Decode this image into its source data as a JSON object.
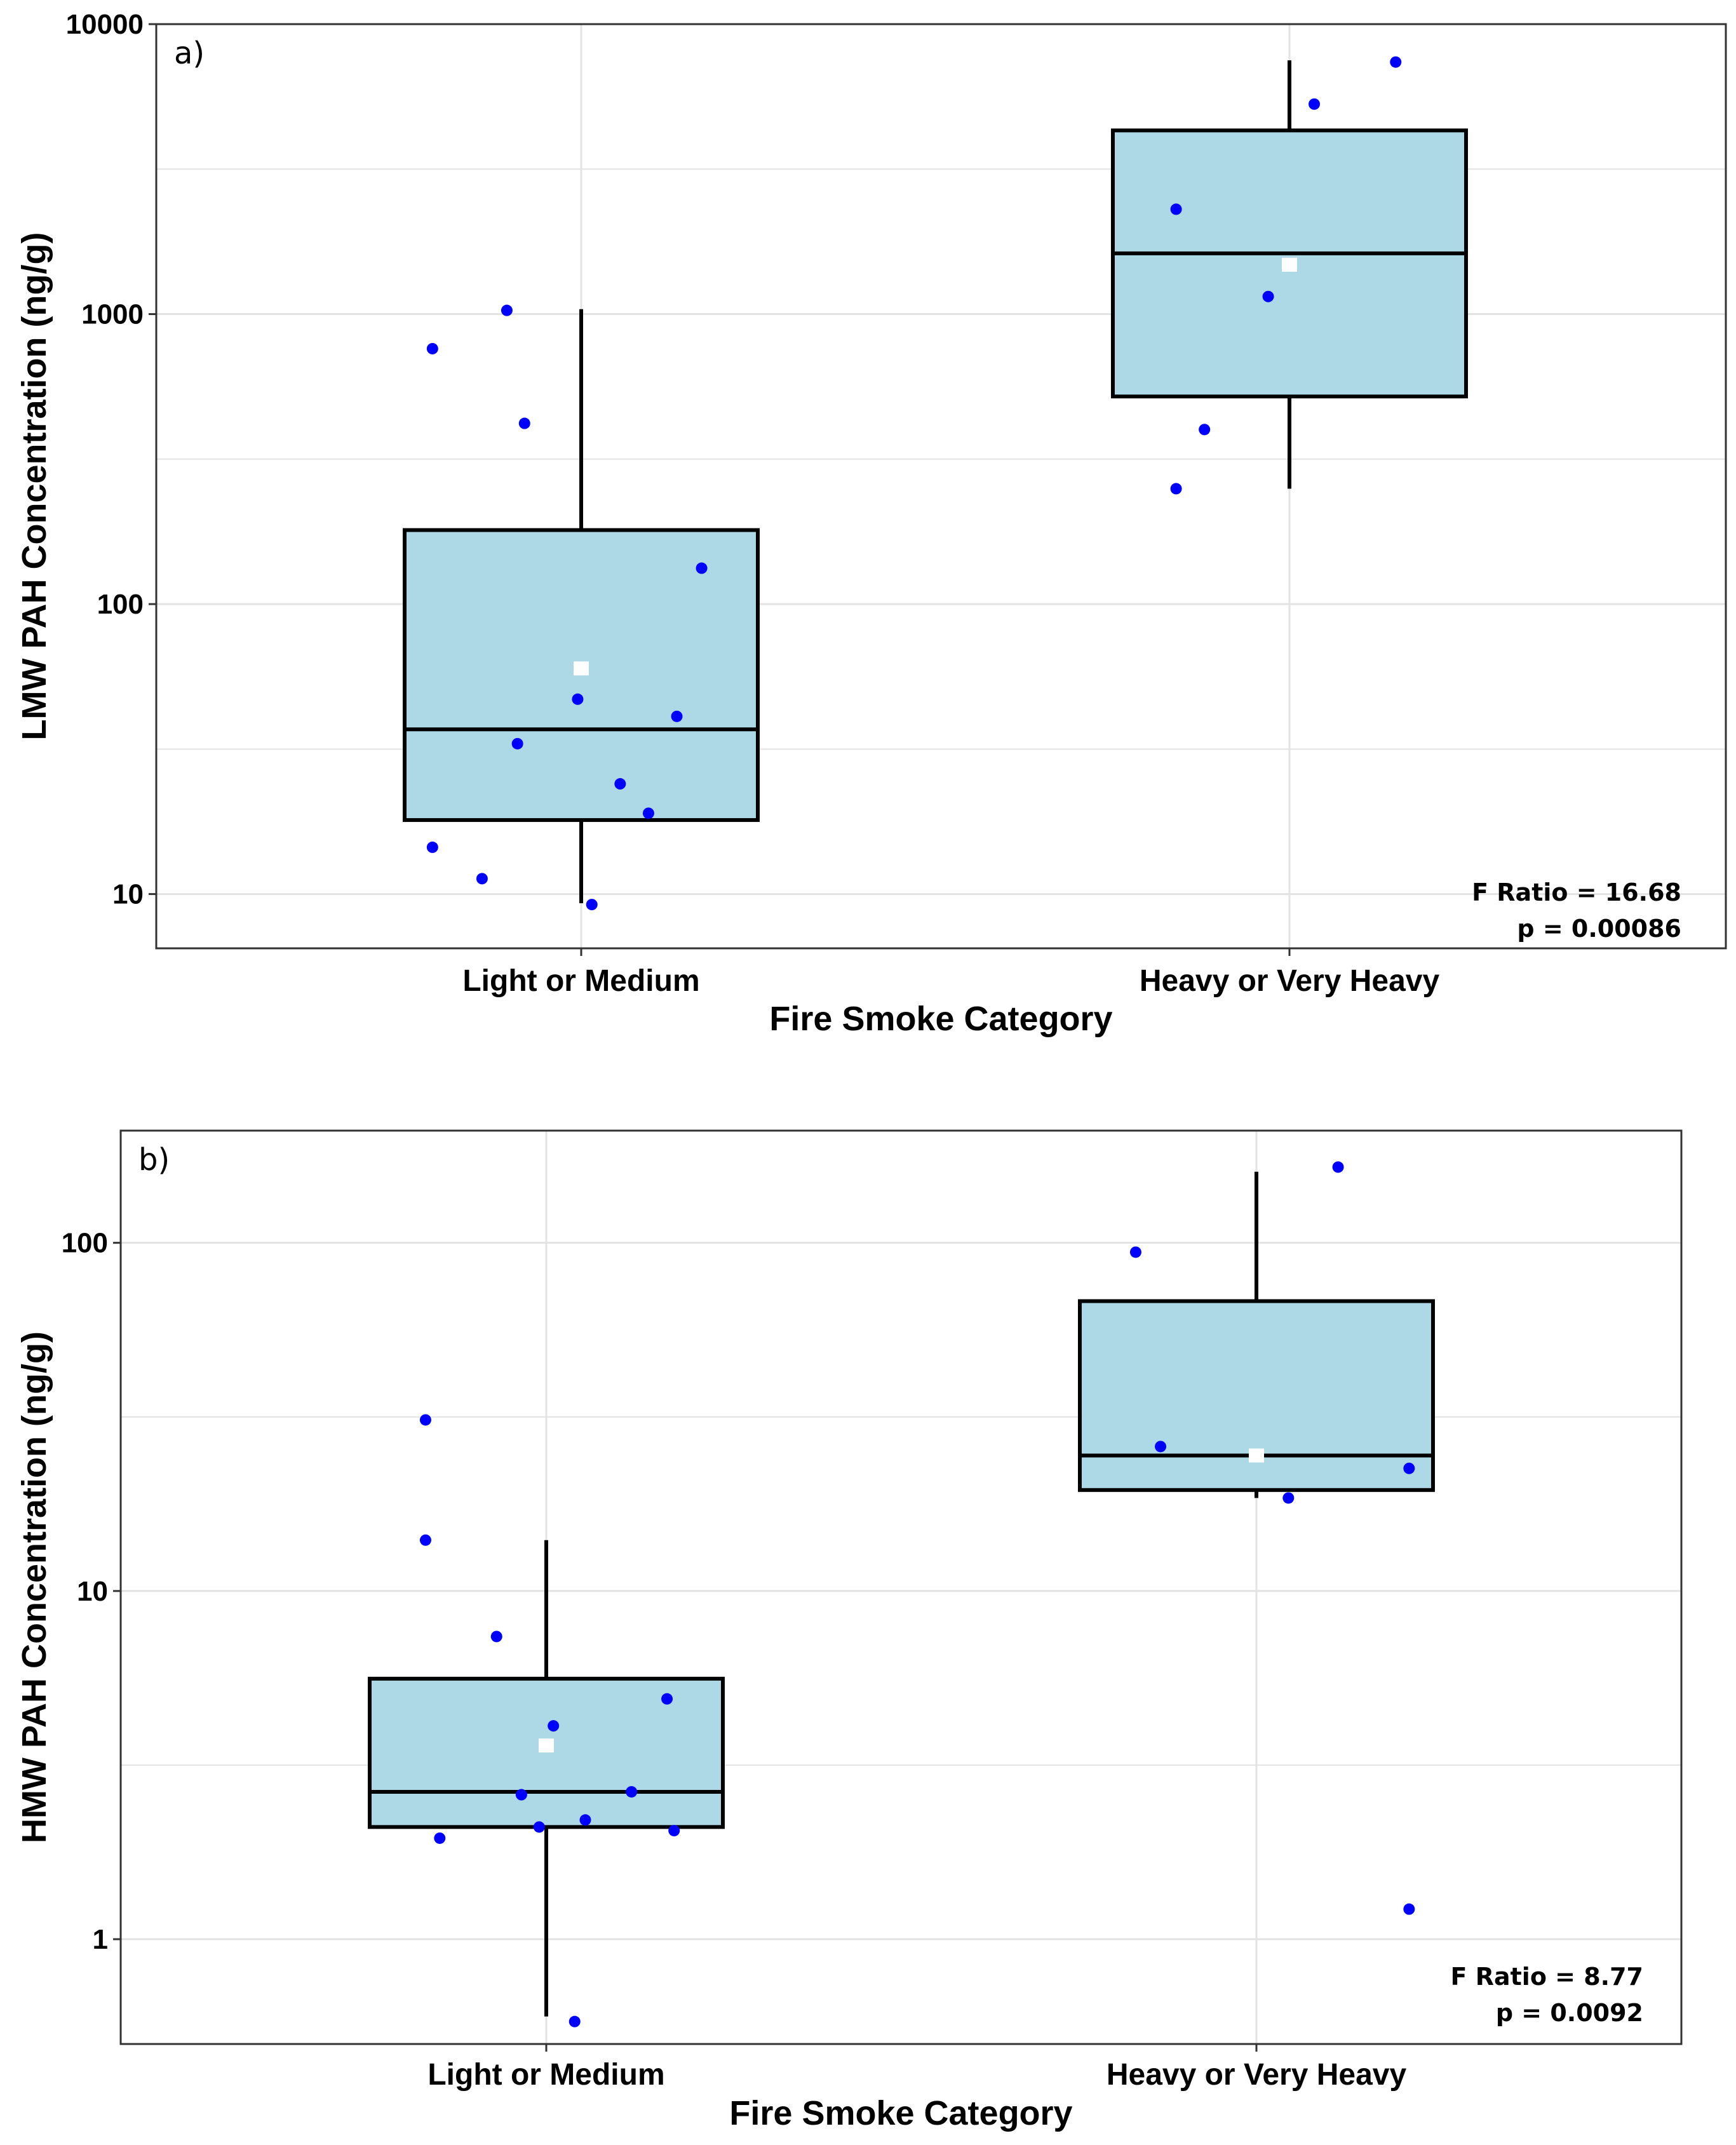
{
  "colors": {
    "box_fill": "#add8e6",
    "point": "#0000ff",
    "mean_marker": "#ffffff",
    "grid": "#e3e3e3"
  },
  "chart_data": [
    {
      "type": "boxplot",
      "panel_label": "a)",
      "ylabel": "LMW PAH Concentration (ng/g)",
      "xlabel": "Fire Smoke Category",
      "yscale": "log10",
      "ylim": [
        6.5,
        10000
      ],
      "yticks": [
        10,
        100,
        1000,
        10000
      ],
      "ytick_labels": [
        "10",
        "100",
        "1000",
        "10000"
      ],
      "categories": [
        "Light or Medium",
        "Heavy or Very Heavy"
      ],
      "boxes": [
        {
          "whisker_low": 9.3,
          "q1": 18,
          "median": 37,
          "q3": 180,
          "whisker_high": 1040,
          "mean": 60
        },
        {
          "whisker_low": 250,
          "q1": 520,
          "median": 1620,
          "q3": 4300,
          "whisker_high": 7500,
          "mean": 1480
        }
      ],
      "points": [
        [
          {
            "jitter": -0.21,
            "y": 14.5
          },
          {
            "jitter": -0.14,
            "y": 11.3
          },
          {
            "jitter": -0.09,
            "y": 33
          },
          {
            "jitter": -0.21,
            "y": 760
          },
          {
            "jitter": -0.105,
            "y": 1030
          },
          {
            "jitter": -0.08,
            "y": 420
          },
          {
            "jitter": -0.005,
            "y": 47
          },
          {
            "jitter": 0.055,
            "y": 24
          },
          {
            "jitter": 0.095,
            "y": 19
          },
          {
            "jitter": 0.135,
            "y": 41
          },
          {
            "jitter": 0.17,
            "y": 133
          },
          {
            "jitter": 0.015,
            "y": 9.2
          }
        ],
        [
          {
            "jitter": -0.16,
            "y": 2300
          },
          {
            "jitter": -0.12,
            "y": 400
          },
          {
            "jitter": -0.16,
            "y": 250
          },
          {
            "jitter": -0.03,
            "y": 1150
          },
          {
            "jitter": 0.035,
            "y": 5300
          },
          {
            "jitter": 0.15,
            "y": 7400
          }
        ]
      ],
      "annotation": {
        "line1": "F Ratio = 16.68",
        "line2": "p = 0.00086"
      }
    },
    {
      "type": "boxplot",
      "panel_label": "b)",
      "ylabel": "HMW PAH Concentration (ng/g)",
      "xlabel": "Fire Smoke Category",
      "yscale": "log10",
      "ylim": [
        0.5,
        210
      ],
      "yticks": [
        1,
        10,
        100
      ],
      "ytick_labels": [
        "1",
        "10",
        "100"
      ],
      "categories": [
        "Light or Medium",
        "Heavy or Very Heavy"
      ],
      "boxes": [
        {
          "whisker_low": 0.6,
          "q1": 2.1,
          "median": 2.65,
          "q3": 5.6,
          "whisker_high": 14,
          "mean": 3.6
        },
        {
          "whisker_low": 18.5,
          "q1": 19.5,
          "median": 24.5,
          "q3": 68,
          "whisker_high": 160,
          "mean": 24.5
        }
      ],
      "points": [
        [
          {
            "jitter": -0.17,
            "y": 31
          },
          {
            "jitter": -0.17,
            "y": 14
          },
          {
            "jitter": -0.07,
            "y": 7.4
          },
          {
            "jitter": 0.01,
            "y": 4.1
          },
          {
            "jitter": 0.17,
            "y": 4.9
          },
          {
            "jitter": -0.035,
            "y": 2.6
          },
          {
            "jitter": 0.12,
            "y": 2.65
          },
          {
            "jitter": -0.15,
            "y": 1.95
          },
          {
            "jitter": -0.01,
            "y": 2.1
          },
          {
            "jitter": 0.055,
            "y": 2.2
          },
          {
            "jitter": 0.18,
            "y": 2.05
          },
          {
            "jitter": 0.04,
            "y": 0.58
          }
        ],
        [
          {
            "jitter": -0.17,
            "y": 94
          },
          {
            "jitter": -0.135,
            "y": 26
          },
          {
            "jitter": 0.045,
            "y": 18.5
          },
          {
            "jitter": 0.115,
            "y": 165
          },
          {
            "jitter": 0.215,
            "y": 22.5
          },
          {
            "jitter": 0.215,
            "y": 1.22
          }
        ]
      ],
      "annotation": {
        "line1": "F Ratio = 8.77",
        "line2": "p = 0.0092"
      }
    }
  ]
}
